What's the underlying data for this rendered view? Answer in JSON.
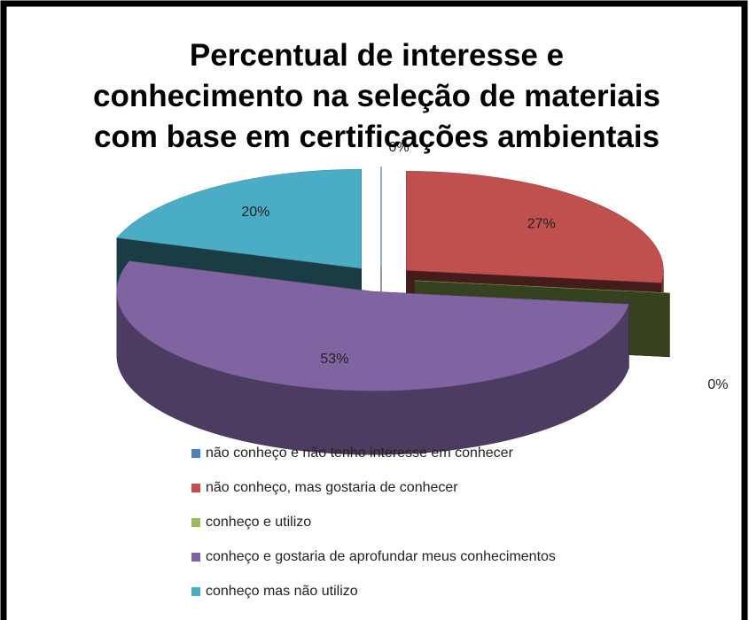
{
  "chart_data": {
    "type": "pie3d",
    "title": "Percentual de interesse e conhecimento na seleção de materiais com base em certificações ambientais",
    "categories": [
      "não conheço e não tenho interesse em conhecer",
      "não conheço, mas gostaria de conhecer",
      "conheço e utilizo",
      "conheço e gostaria de aprofundar meus conhecimentos",
      "conheço mas não utilizo"
    ],
    "values": [
      0,
      27,
      0,
      53,
      20
    ],
    "value_labels": [
      "0%",
      "27%",
      "0%",
      "53%",
      "20%"
    ],
    "colors": [
      "#4f81bd",
      "#c0504d",
      "#9bbb59",
      "#8064a2",
      "#4bacc6"
    ],
    "legend": "bottom"
  }
}
